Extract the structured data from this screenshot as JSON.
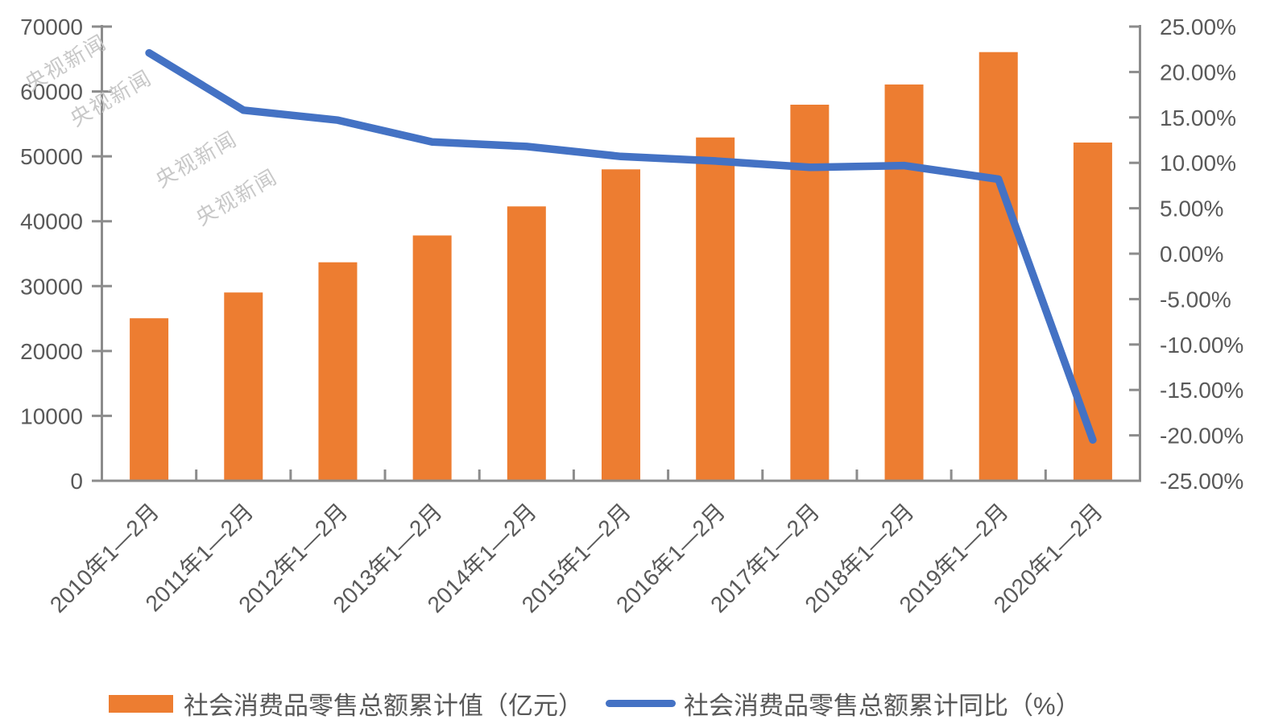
{
  "watermark": {
    "text": "央视新闻"
  },
  "legend": {
    "bar_label": "社会消费品零售总额累计值（亿元）",
    "line_label": "社会消费品零售总额累计同比（%）"
  },
  "colors": {
    "bar": "#ED7D31",
    "line": "#4472C4",
    "axis_text": "#595959",
    "axis_line": "#8C8C8C",
    "watermark": "#C8C8C8"
  },
  "chart_data": {
    "type": "bar+line combo",
    "title": "",
    "xlabel": "",
    "ylabel_left": "社会消费品零售总额累计值（亿元）",
    "ylabel_right": "社会消费品零售总额累计同比（%）",
    "grid": false,
    "legend_position": "bottom",
    "categories": [
      "2010年1—2月",
      "2011年1—2月",
      "2012年1—2月",
      "2013年1—2月",
      "2014年1—2月",
      "2015年1—2月",
      "2016年1—2月",
      "2017年1—2月",
      "2018年1—2月",
      "2019年1—2月",
      "2020年1—2月"
    ],
    "series": [
      {
        "name": "社会消费品零售总额累计值（亿元）",
        "type": "bar",
        "axis": "left",
        "values": [
          25052,
          29018,
          33669,
          37810,
          42281,
          47992,
          52910,
          57960,
          61082,
          66064,
          52130
        ]
      },
      {
        "name": "社会消费品零售总额累计同比（%）",
        "type": "line",
        "axis": "right",
        "values": [
          22.1,
          15.8,
          14.7,
          12.3,
          11.8,
          10.7,
          10.2,
          9.5,
          9.7,
          8.2,
          -20.5
        ]
      }
    ],
    "left_axis": {
      "min": 0,
      "max": 70000,
      "step": 10000,
      "ticks": [
        0,
        10000,
        20000,
        30000,
        40000,
        50000,
        60000,
        70000
      ],
      "tick_labels": [
        "0",
        "10000",
        "20000",
        "30000",
        "40000",
        "50000",
        "60000",
        "70000"
      ]
    },
    "right_axis": {
      "min": -25,
      "max": 25,
      "step": 5,
      "ticks": [
        -25,
        -20,
        -15,
        -10,
        -5,
        0,
        5,
        10,
        15,
        20,
        25
      ],
      "tick_labels": [
        "-25.00%",
        "-20.00%",
        "-15.00%",
        "-10.00%",
        "-5.00%",
        "0.00%",
        "5.00%",
        "10.00%",
        "15.00%",
        "20.00%",
        "25.00%"
      ]
    }
  }
}
